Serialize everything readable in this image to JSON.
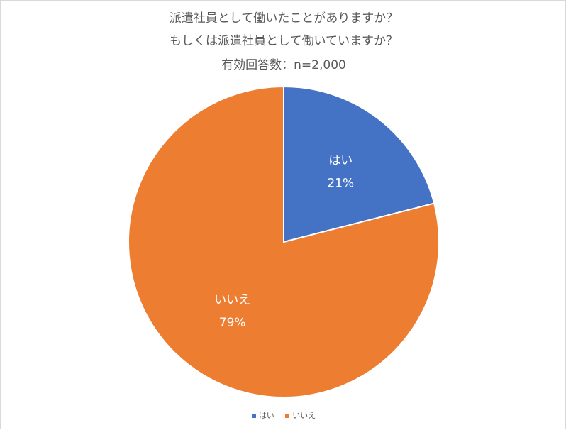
{
  "chart_data": {
    "type": "pie",
    "title_lines": [
      "派遣社員として働いたことがありますか？",
      "もしくは派遣社員として働いていますか？",
      "有効回答数：n=2,000"
    ],
    "categories": [
      "はい",
      "いいえ"
    ],
    "values": [
      21,
      79
    ],
    "data_labels": [
      "21%",
      "79%"
    ],
    "colors": [
      "#4472C4",
      "#ED7D31"
    ],
    "start_angle": "12 o'clock, clockwise",
    "legend_position": "bottom"
  }
}
